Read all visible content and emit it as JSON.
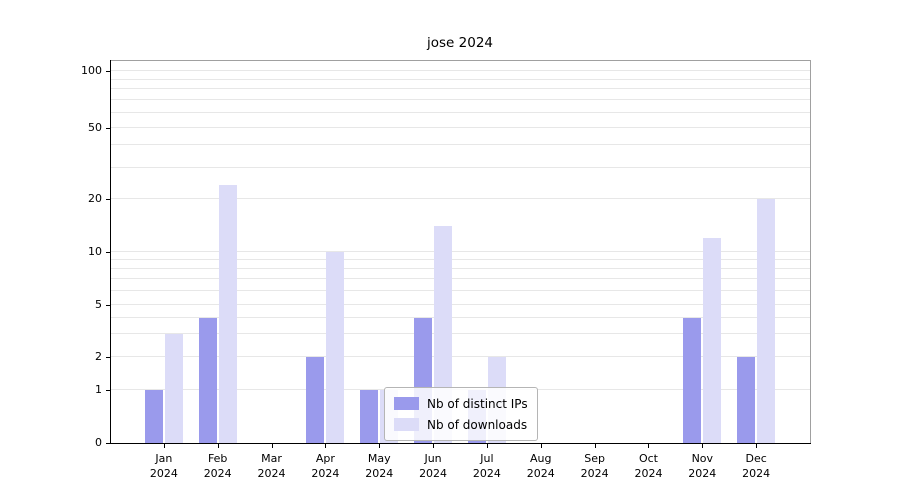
{
  "chart_data": {
    "type": "bar",
    "title": "jose 2024",
    "categories": [
      "Jan 2024",
      "Feb 2024",
      "Mar 2024",
      "Apr 2024",
      "May 2024",
      "Jun 2024",
      "Jul 2024",
      "Aug 2024",
      "Sep 2024",
      "Oct 2024",
      "Nov 2024",
      "Dec 2024"
    ],
    "series": [
      {
        "name": "Nb of distinct IPs",
        "color": "#9a9aec",
        "values": [
          1,
          4,
          0,
          2,
          1,
          4,
          1,
          0,
          0,
          0,
          4,
          2
        ]
      },
      {
        "name": "Nb of downloads",
        "color": "#dcdcf8",
        "values": [
          3,
          24,
          0,
          10,
          1,
          14,
          2,
          0,
          0,
          0,
          12,
          20
        ]
      }
    ],
    "yscale": "symlog",
    "ytick_values": [
      0,
      1,
      2,
      5,
      10,
      20,
      50,
      100
    ],
    "ytick_labels": [
      "0",
      "1",
      "2",
      "5",
      "10",
      "20",
      "50",
      "100"
    ],
    "ylim": [
      0,
      110
    ],
    "grid": true,
    "legend_position": "lower center"
  }
}
